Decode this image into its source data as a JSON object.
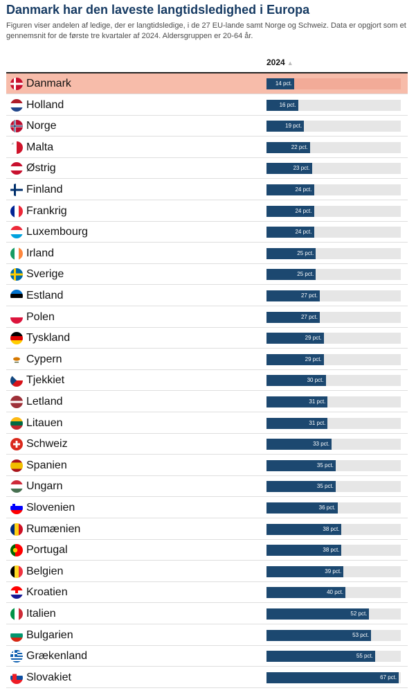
{
  "chart_data": {
    "type": "bar",
    "orientation": "horizontal",
    "title": "Danmark har den laveste langtidsledighed i Europa",
    "subtitle": "Figuren viser andelen af ledige, der er langtidsledige, i de 27 EU-lande samt Norge og Schweiz. Data er opgjort som et gennemsnit for de første tre kvartaler af 2024. Aldersgruppen er 20-64 år.",
    "column_header": "2024",
    "sort_indicator": "▲",
    "value_unit": "pct.",
    "xlim": [
      0,
      68
    ],
    "highlight": "Danmark",
    "colors": {
      "bar": "#1c4870",
      "track": "#e6e6e6",
      "highlight_row": "#f7bcaa",
      "title": "#173b63"
    },
    "categories": [
      "Danmark",
      "Holland",
      "Norge",
      "Malta",
      "Østrig",
      "Finland",
      "Frankrig",
      "Luxembourg",
      "Irland",
      "Sverige",
      "Estland",
      "Polen",
      "Tyskland",
      "Cypern",
      "Tjekkiet",
      "Letland",
      "Litauen",
      "Schweiz",
      "Spanien",
      "Ungarn",
      "Slovenien",
      "Rumænien",
      "Portugal",
      "Belgien",
      "Kroatien",
      "Italien",
      "Bulgarien",
      "Grækenland",
      "Slovakiet"
    ],
    "values": [
      14,
      16,
      19,
      22,
      23,
      24,
      24,
      24,
      25,
      25,
      27,
      27,
      29,
      29,
      30,
      31,
      31,
      33,
      35,
      35,
      36,
      38,
      38,
      39,
      40,
      52,
      53,
      55,
      67
    ],
    "flag_icons": [
      "flag-dk-icon",
      "flag-nl-icon",
      "flag-no-icon",
      "flag-mt-icon",
      "flag-at-icon",
      "flag-fi-icon",
      "flag-fr-icon",
      "flag-lu-icon",
      "flag-ie-icon",
      "flag-se-icon",
      "flag-ee-icon",
      "flag-pl-icon",
      "flag-de-icon",
      "flag-cy-icon",
      "flag-cz-icon",
      "flag-lv-icon",
      "flag-lt-icon",
      "flag-ch-icon",
      "flag-es-icon",
      "flag-hu-icon",
      "flag-si-icon",
      "flag-ro-icon",
      "flag-pt-icon",
      "flag-be-icon",
      "flag-hr-icon",
      "flag-it-icon",
      "flag-bg-icon",
      "flag-gr-icon",
      "flag-sk-icon"
    ]
  }
}
